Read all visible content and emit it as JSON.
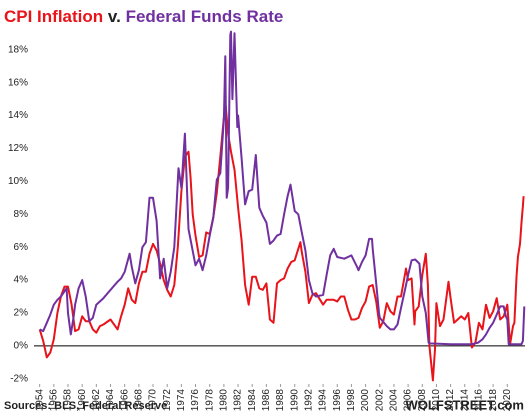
{
  "chart_data": {
    "type": "line",
    "title_connector": "v.",
    "source": "Sources: BLS, Federal Reserve",
    "brand": "WOLFSTREET.com",
    "xlim": [
      1953.2,
      2022.5
    ],
    "xticks": [
      1954,
      1956,
      1958,
      1960,
      1962,
      1964,
      1966,
      1968,
      1970,
      1972,
      1974,
      1976,
      1978,
      1980,
      1982,
      1984,
      1986,
      1988,
      1990,
      1992,
      1994,
      1996,
      1998,
      2000,
      2002,
      2004,
      2006,
      2008,
      2010,
      2012,
      2014,
      2016,
      2018,
      2020
    ],
    "ylim": [
      -2.5,
      19.2
    ],
    "yticks": [
      {
        "value": -2,
        "label": "-2%"
      },
      {
        "value": 0,
        "label": "0%"
      },
      {
        "value": 2,
        "label": "2%"
      },
      {
        "value": 4,
        "label": "4%"
      },
      {
        "value": 6,
        "label": "6%"
      },
      {
        "value": 8,
        "label": "8%"
      },
      {
        "value": 10,
        "label": "10%"
      },
      {
        "value": 12,
        "label": "12%"
      },
      {
        "value": 14,
        "label": "14%"
      },
      {
        "value": 16,
        "label": "16%"
      },
      {
        "value": 18,
        "label": "18%"
      }
    ],
    "grid": false,
    "series": [
      {
        "name": "CPI Inflation",
        "color": "#e8141a",
        "x": [
          1954,
          1954.5,
          1955,
          1955.5,
          1956,
          1956.5,
          1957,
          1957.5,
          1958,
          1958.5,
          1959,
          1959.5,
          1960,
          1960.5,
          1961,
          1961.5,
          1962,
          1962.5,
          1963,
          1964,
          1965,
          1965.5,
          1966,
          1966.5,
          1967,
          1967.5,
          1968,
          1968.5,
          1969,
          1969.5,
          1970,
          1970.5,
          1971,
          1971.5,
          1972,
          1972.5,
          1973,
          1973.5,
          1974,
          1974.5,
          1975,
          1975.3,
          1975.6,
          1976,
          1976.5,
          1977,
          1977.5,
          1978,
          1978.5,
          1979,
          1979.5,
          1980,
          1980.25,
          1980.6,
          1981,
          1981.5,
          1982,
          1982.5,
          1983,
          1983.5,
          1984,
          1984.5,
          1985,
          1985.5,
          1986,
          1986.5,
          1987,
          1987.5,
          1988,
          1988.5,
          1989,
          1989.5,
          1990,
          1990.8,
          1991,
          1991.5,
          1992,
          1992.5,
          1993,
          1994,
          1994.5,
          1995,
          1995.5,
          1996,
          1996.5,
          1997,
          1997.5,
          1998,
          1998.5,
          1999,
          1999.5,
          2000,
          2000.5,
          2001,
          2001.5,
          2002,
          2002.5,
          2003,
          2003.5,
          2004,
          2004.5,
          2005,
          2005.7,
          2006,
          2006.5,
          2006.9,
          2007,
          2007.5,
          2008,
          2008.5,
          2008.8,
          2009,
          2009.5,
          2009.8,
          2010,
          2010.5,
          2011,
          2011.7,
          2012,
          2012.5,
          2013,
          2013.5,
          2014,
          2014.5,
          2015,
          2015.5,
          2016,
          2016.5,
          2017,
          2017.5,
          2018,
          2018.5,
          2019,
          2019.5,
          2020,
          2020.4,
          2020.8,
          2021,
          2021.3,
          2021.5,
          2021.8,
          2022,
          2022.2,
          2022.3
        ],
        "values": [
          1.0,
          0.3,
          -0.7,
          -0.4,
          0.4,
          2.0,
          3.0,
          3.6,
          3.6,
          2.5,
          0.9,
          1.0,
          1.8,
          1.5,
          1.5,
          1.0,
          0.8,
          1.2,
          1.3,
          1.6,
          1.0,
          1.8,
          2.5,
          3.5,
          2.8,
          2.6,
          3.8,
          4.5,
          4.5,
          5.6,
          6.2,
          5.8,
          5.0,
          4.0,
          3.4,
          3.0,
          3.7,
          6.0,
          9.4,
          11.5,
          11.8,
          10.2,
          8.0,
          6.7,
          5.4,
          5.5,
          6.9,
          6.8,
          7.8,
          9.3,
          11.5,
          13.9,
          14.6,
          12.9,
          11.8,
          10.7,
          8.4,
          6.4,
          3.7,
          2.5,
          4.2,
          4.2,
          3.5,
          3.4,
          3.8,
          1.6,
          1.4,
          3.8,
          4.0,
          4.1,
          4.7,
          5.1,
          5.2,
          6.3,
          5.7,
          4.5,
          2.6,
          3.1,
          3.2,
          2.5,
          2.8,
          2.8,
          2.8,
          2.7,
          3.0,
          3.0,
          2.2,
          1.6,
          1.6,
          1.7,
          2.3,
          2.7,
          3.6,
          3.7,
          2.7,
          1.1,
          1.5,
          2.6,
          2.1,
          1.9,
          3.0,
          3.0,
          4.7,
          4.0,
          4.1,
          1.3,
          2.1,
          2.4,
          4.3,
          5.6,
          3.7,
          0.0,
          -2.1,
          -0.2,
          2.6,
          1.2,
          1.6,
          3.9,
          2.9,
          1.4,
          1.6,
          1.8,
          1.6,
          2.0,
          -0.1,
          0.2,
          1.4,
          1.0,
          2.5,
          1.7,
          2.1,
          2.9,
          1.6,
          1.8,
          2.5,
          0.1,
          1.2,
          1.4,
          4.2,
          5.4,
          6.2,
          7.5,
          8.5,
          9.1
        ]
      },
      {
        "name": "Federal Funds Rate",
        "color": "#7030a0",
        "x": [
          1954,
          1954.5,
          1955,
          1955.5,
          1956,
          1956.5,
          1957,
          1957.8,
          1958,
          1958.4,
          1958.8,
          1959,
          1959.5,
          1960,
          1960.5,
          1961,
          1961.5,
          1962,
          1963,
          1964,
          1965,
          1965.5,
          1966,
          1966.7,
          1967,
          1967.5,
          1968,
          1968.5,
          1969,
          1969.5,
          1970,
          1970.5,
          1971,
          1971.5,
          1972,
          1972.5,
          1973,
          1973.6,
          1974,
          1974.5,
          1975,
          1975.5,
          1976,
          1976.5,
          1977,
          1977.5,
          1978,
          1978.5,
          1979,
          1979.5,
          1980,
          1980.2,
          1980.4,
          1980.6,
          1980.9,
          1981,
          1981.2,
          1981.5,
          1981.9,
          1982,
          1982.5,
          1982.8,
          1983,
          1983.5,
          1984,
          1984.5,
          1985,
          1985.5,
          1986,
          1986.5,
          1987,
          1987.5,
          1988,
          1988.5,
          1989,
          1989.4,
          1990,
          1990.5,
          1991,
          1991.5,
          1992,
          1992.5,
          1993,
          1994,
          1994.5,
          1995,
          1995.5,
          1996,
          1997,
          1998,
          1998.8,
          1999,
          1999.5,
          2000,
          2000.5,
          2000.9,
          2001,
          2001.5,
          2001.9,
          2002,
          2003,
          2003.5,
          2004,
          2004.5,
          2005,
          2005.5,
          2006,
          2006.5,
          2007,
          2007.6,
          2008,
          2008.5,
          2008.9,
          2009,
          2012,
          2015,
          2015.9,
          2016.5,
          2017,
          2017.5,
          2018,
          2018.5,
          2019,
          2019.5,
          2019.8,
          2020,
          2020.2,
          2022,
          2022.2,
          2022.4
        ],
        "values": [
          1.0,
          0.9,
          1.4,
          1.9,
          2.5,
          2.8,
          3.0,
          3.5,
          2.0,
          0.7,
          1.8,
          2.5,
          3.5,
          4.0,
          3.0,
          1.5,
          1.7,
          2.5,
          2.9,
          3.4,
          3.9,
          4.1,
          4.5,
          5.6,
          4.8,
          3.8,
          4.6,
          6.0,
          6.3,
          9.0,
          9.0,
          7.6,
          4.1,
          5.3,
          3.5,
          4.5,
          6.0,
          10.8,
          9.6,
          12.9,
          7.1,
          6.0,
          4.9,
          5.3,
          4.6,
          5.5,
          6.7,
          7.8,
          10.1,
          10.5,
          13.8,
          17.6,
          9.0,
          9.6,
          18.9,
          19.1,
          15.0,
          19.0,
          13.3,
          14.0,
          11.4,
          9.7,
          8.6,
          9.4,
          9.5,
          11.6,
          8.4,
          7.9,
          7.5,
          6.2,
          6.4,
          6.7,
          6.8,
          8.0,
          9.1,
          9.8,
          8.2,
          8.0,
          6.9,
          5.8,
          4.0,
          3.2,
          3.0,
          3.1,
          4.3,
          5.5,
          5.9,
          5.4,
          5.3,
          5.5,
          4.8,
          4.6,
          5.1,
          5.5,
          6.5,
          6.5,
          5.9,
          3.8,
          2.0,
          1.7,
          1.2,
          1.0,
          1.0,
          1.3,
          2.3,
          3.3,
          4.3,
          5.2,
          5.25,
          5.0,
          3.0,
          2.0,
          0.2,
          0.15,
          0.1,
          0.1,
          0.2,
          0.4,
          0.7,
          1.1,
          1.4,
          1.9,
          2.4,
          2.4,
          1.8,
          1.6,
          0.1,
          0.1,
          0.3,
          2.4
        ]
      }
    ]
  }
}
